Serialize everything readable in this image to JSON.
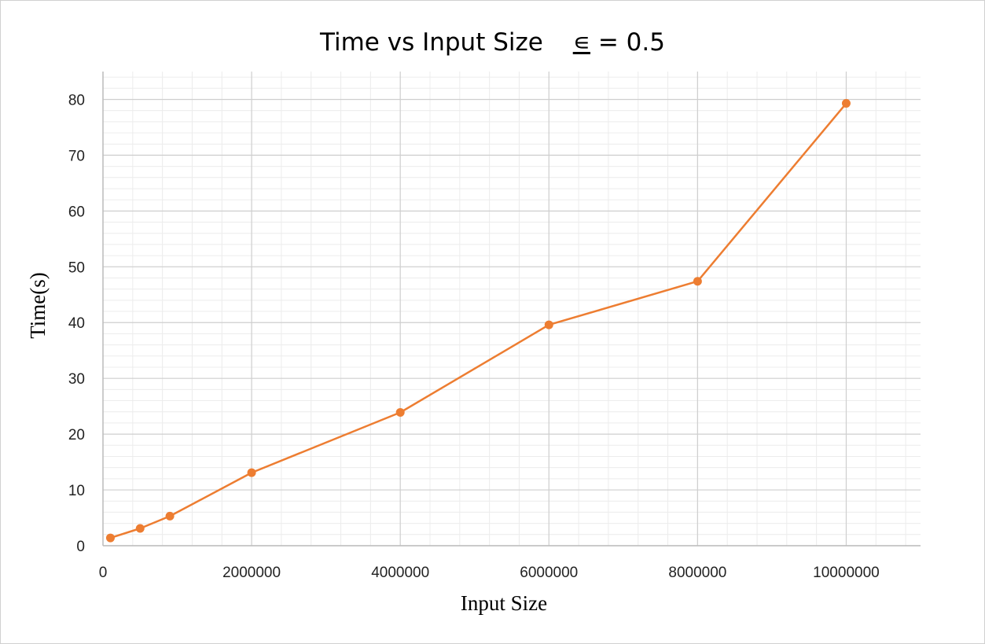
{
  "chart_data": {
    "type": "line",
    "title": "Time vs Input Size",
    "title_symbol": "∊",
    "title_suffix": "= 0.5",
    "xlabel": "Input Size",
    "ylabel": "Time(s)",
    "xlim": [
      0,
      11000000
    ],
    "ylim": [
      0,
      85
    ],
    "x_ticks": [
      0,
      2000000,
      4000000,
      6000000,
      8000000,
      10000000
    ],
    "y_ticks": [
      0,
      10,
      20,
      30,
      40,
      50,
      60,
      70,
      80
    ],
    "grid": true,
    "minor_grid": true,
    "series": [
      {
        "color": "#ED7D31",
        "x": [
          100000,
          500000,
          900000,
          2000000,
          4000000,
          6000000,
          8000000,
          10000000
        ],
        "y": [
          1.4,
          3.1,
          5.3,
          13.1,
          23.9,
          39.6,
          47.4,
          79.3
        ]
      }
    ]
  }
}
